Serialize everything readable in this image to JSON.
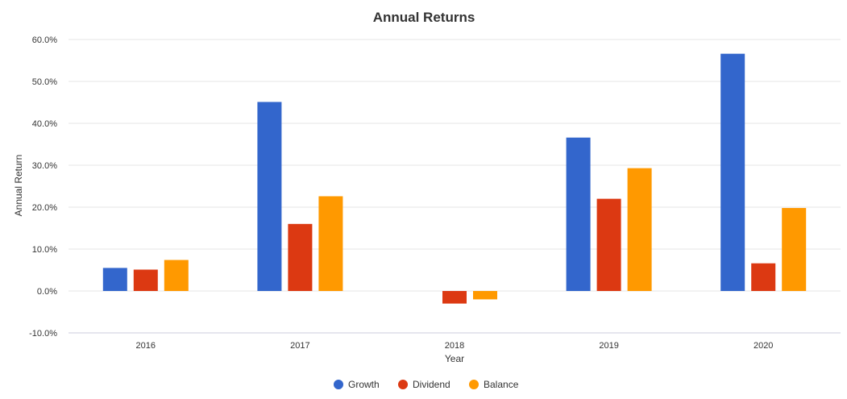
{
  "chart_data": {
    "type": "bar",
    "title": "Annual Returns",
    "xlabel": "Year",
    "ylabel": "Annual Return",
    "categories": [
      "2016",
      "2017",
      "2018",
      "2019",
      "2020"
    ],
    "series": [
      {
        "name": "Growth",
        "color": "#3366cc",
        "values": [
          5.5,
          45.1,
          0.0,
          36.6,
          56.6
        ]
      },
      {
        "name": "Dividend",
        "color": "#dc3912",
        "values": [
          5.1,
          16.0,
          -3.0,
          22.0,
          6.6
        ]
      },
      {
        "name": "Balance",
        "color": "#ff9900",
        "values": [
          7.4,
          22.6,
          -2.0,
          29.3,
          19.8
        ]
      }
    ],
    "ylim": [
      -10,
      60
    ],
    "yticks": [
      -10,
      0,
      10,
      20,
      30,
      40,
      50,
      60
    ],
    "ytick_labels": [
      "-10.0%",
      "0.0%",
      "10.0%",
      "20.0%",
      "30.0%",
      "40.0%",
      "50.0%",
      "60.0%"
    ],
    "grid": true,
    "legend_position": "bottom"
  }
}
